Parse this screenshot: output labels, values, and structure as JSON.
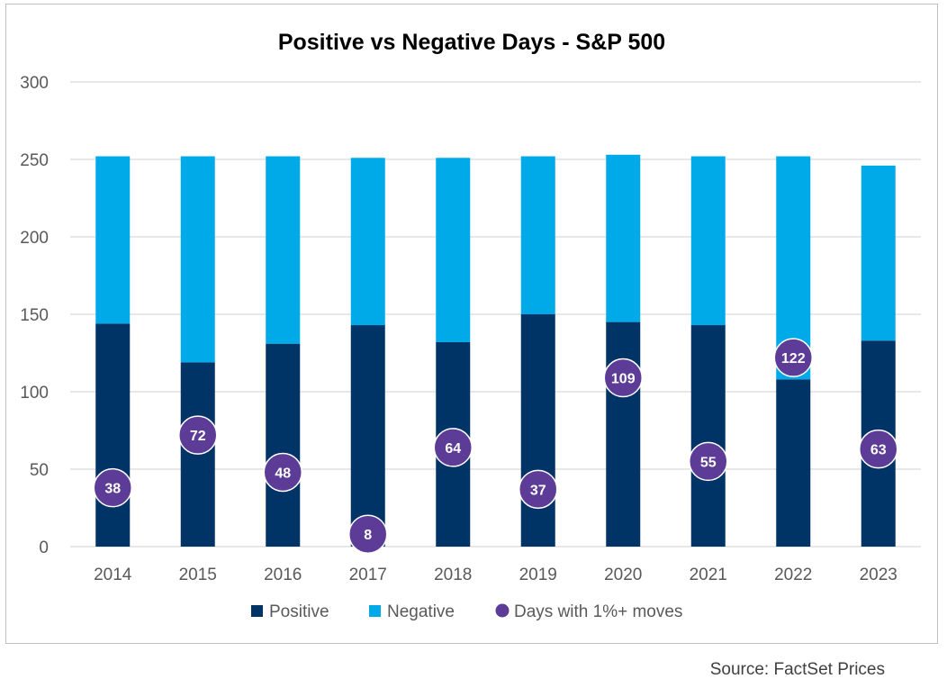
{
  "source": "Source: FactSet Prices",
  "colors": {
    "positive": "#003366",
    "negative": "#00a9e8",
    "moves": "#5c3c96",
    "grid": "#d9d9d9",
    "axis_text": "#595959",
    "title_text": "#000000"
  },
  "chart_data": {
    "type": "bar",
    "stacked": true,
    "title": "Positive vs Negative Days - S&P 500",
    "xlabel": "",
    "ylabel": "",
    "categories": [
      "2014",
      "2015",
      "2016",
      "2017",
      "2018",
      "2019",
      "2020",
      "2021",
      "2022",
      "2023"
    ],
    "series": [
      {
        "name": "Positive",
        "kind": "bar",
        "values": [
          144,
          119,
          131,
          143,
          132,
          150,
          145,
          143,
          108,
          133
        ]
      },
      {
        "name": "Negative",
        "kind": "bar",
        "values": [
          108,
          133,
          121,
          108,
          119,
          102,
          108,
          109,
          144,
          113
        ]
      },
      {
        "name": "Days with 1%+ moves",
        "kind": "marker",
        "values": [
          38,
          72,
          48,
          8,
          64,
          37,
          109,
          55,
          122,
          63
        ]
      }
    ],
    "ylim": [
      0,
      300
    ],
    "yticks": [
      0,
      50,
      100,
      150,
      200,
      250,
      300
    ],
    "grid": true,
    "legend": "bottom"
  }
}
